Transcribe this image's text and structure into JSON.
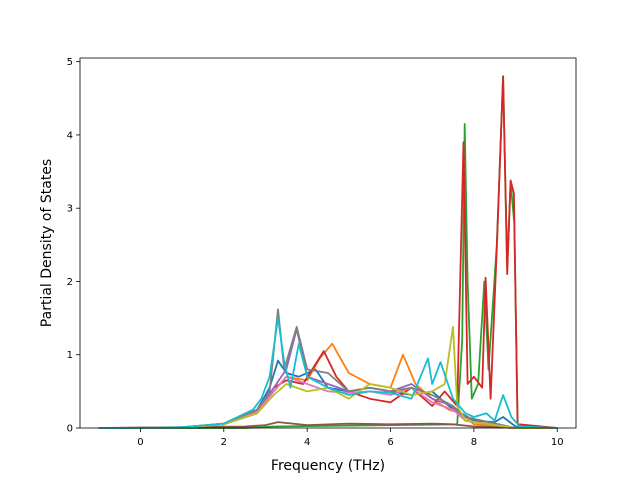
{
  "chart_data": {
    "type": "line",
    "title": "",
    "xlabel": "Frequency (THz)",
    "ylabel": "Partial Density of States",
    "xlim": [
      -1.45,
      10.45
    ],
    "ylim": [
      0,
      5.05
    ],
    "xticks": [
      0,
      2,
      4,
      6,
      8,
      10
    ],
    "xtick_labels": [
      "0",
      "2",
      "4",
      "6",
      "8",
      "10"
    ],
    "yticks": [
      0,
      1,
      2,
      3,
      4,
      5
    ],
    "ytick_labels": [
      "0",
      "1",
      "2",
      "3",
      "4",
      "5"
    ],
    "grid": false,
    "series": [
      {
        "color": "#1f77b4",
        "points": [
          [
            -1.0,
            0
          ],
          [
            0,
            0
          ],
          [
            1,
            0.01
          ],
          [
            2,
            0.05
          ],
          [
            2.8,
            0.25
          ],
          [
            3.1,
            0.55
          ],
          [
            3.3,
            0.92
          ],
          [
            3.5,
            0.75
          ],
          [
            3.8,
            0.7
          ],
          [
            4.2,
            0.8
          ],
          [
            4.5,
            0.55
          ],
          [
            5,
            0.5
          ],
          [
            5.5,
            0.55
          ],
          [
            6,
            0.5
          ],
          [
            6.5,
            0.45
          ],
          [
            7,
            0.5
          ],
          [
            7.4,
            0.3
          ],
          [
            7.7,
            0.2
          ],
          [
            8,
            0.1
          ],
          [
            8.5,
            0.08
          ],
          [
            8.7,
            0.15
          ],
          [
            9,
            0.02
          ],
          [
            10,
            0
          ]
        ]
      },
      {
        "color": "#ff7f0e",
        "points": [
          [
            -1.0,
            0
          ],
          [
            0,
            0
          ],
          [
            1,
            0.01
          ],
          [
            2,
            0.05
          ],
          [
            2.8,
            0.22
          ],
          [
            3.2,
            0.5
          ],
          [
            3.5,
            0.7
          ],
          [
            4,
            0.65
          ],
          [
            4.3,
            0.95
          ],
          [
            4.6,
            1.15
          ],
          [
            5,
            0.75
          ],
          [
            5.5,
            0.6
          ],
          [
            6,
            0.55
          ],
          [
            6.3,
            1.0
          ],
          [
            6.6,
            0.6
          ],
          [
            7,
            0.4
          ],
          [
            7.4,
            0.25
          ],
          [
            7.7,
            0.2
          ],
          [
            8,
            0.05
          ],
          [
            9,
            0
          ],
          [
            10,
            0
          ]
        ]
      },
      {
        "color": "#2ca02c",
        "points": [
          [
            -1.0,
            0
          ],
          [
            2.5,
            0
          ],
          [
            3.2,
            0.02
          ],
          [
            7.6,
            0.05
          ],
          [
            7.72,
            1.2
          ],
          [
            7.78,
            4.15
          ],
          [
            7.85,
            2.0
          ],
          [
            7.95,
            0.4
          ],
          [
            8.1,
            0.6
          ],
          [
            8.25,
            2.0
          ],
          [
            8.35,
            0.8
          ],
          [
            8.55,
            2.5
          ],
          [
            8.7,
            4.8
          ],
          [
            8.8,
            2.2
          ],
          [
            8.88,
            3.35
          ],
          [
            8.97,
            2.8
          ],
          [
            9.05,
            0.05
          ],
          [
            10,
            0
          ]
        ]
      },
      {
        "color": "#d62728",
        "points": [
          [
            -1.0,
            0
          ],
          [
            0,
            0
          ],
          [
            1,
            0.01
          ],
          [
            2,
            0.06
          ],
          [
            2.8,
            0.22
          ],
          [
            3.2,
            0.55
          ],
          [
            3.5,
            0.65
          ],
          [
            3.9,
            0.6
          ],
          [
            4.4,
            1.05
          ],
          [
            4.7,
            0.7
          ],
          [
            5,
            0.5
          ],
          [
            5.5,
            0.4
          ],
          [
            6,
            0.35
          ],
          [
            6.5,
            0.55
          ],
          [
            7,
            0.3
          ],
          [
            7.3,
            0.5
          ],
          [
            7.6,
            0.3
          ],
          [
            7.75,
            3.9
          ],
          [
            7.85,
            0.6
          ],
          [
            8,
            0.7
          ],
          [
            8.2,
            0.55
          ],
          [
            8.28,
            2.05
          ],
          [
            8.4,
            0.4
          ],
          [
            8.55,
            2.45
          ],
          [
            8.7,
            4.8
          ],
          [
            8.8,
            2.1
          ],
          [
            8.88,
            3.38
          ],
          [
            8.96,
            3.2
          ],
          [
            9.05,
            0.05
          ],
          [
            10,
            0
          ]
        ]
      },
      {
        "color": "#9467bd",
        "points": [
          [
            -1.0,
            0
          ],
          [
            0,
            0
          ],
          [
            1,
            0.01
          ],
          [
            2,
            0.05
          ],
          [
            2.8,
            0.2
          ],
          [
            3.2,
            0.55
          ],
          [
            3.5,
            0.8
          ],
          [
            3.75,
            1.35
          ],
          [
            4,
            0.7
          ],
          [
            4.5,
            0.6
          ],
          [
            5,
            0.5
          ],
          [
            5.5,
            0.55
          ],
          [
            6,
            0.5
          ],
          [
            6.5,
            0.6
          ],
          [
            7,
            0.4
          ],
          [
            7.5,
            0.3
          ],
          [
            7.8,
            0.1
          ],
          [
            9,
            0
          ],
          [
            10,
            0
          ]
        ]
      },
      {
        "color": "#8c564b",
        "points": [
          [
            -1.0,
            0
          ],
          [
            2.5,
            0.02
          ],
          [
            3,
            0.04
          ],
          [
            3.3,
            0.08
          ],
          [
            4,
            0.04
          ],
          [
            5,
            0.06
          ],
          [
            6,
            0.05
          ],
          [
            7,
            0.06
          ],
          [
            7.5,
            0.05
          ],
          [
            8,
            0.02
          ],
          [
            9,
            0
          ],
          [
            10,
            0
          ]
        ]
      },
      {
        "color": "#e377c2",
        "points": [
          [
            -1.0,
            0
          ],
          [
            0,
            0
          ],
          [
            1,
            0.01
          ],
          [
            2,
            0.05
          ],
          [
            2.8,
            0.22
          ],
          [
            3.2,
            0.5
          ],
          [
            3.5,
            0.7
          ],
          [
            4,
            0.6
          ],
          [
            4.5,
            0.5
          ],
          [
            5,
            0.48
          ],
          [
            5.5,
            0.5
          ],
          [
            6,
            0.45
          ],
          [
            6.5,
            0.55
          ],
          [
            7,
            0.35
          ],
          [
            7.5,
            0.25
          ],
          [
            7.8,
            0.1
          ],
          [
            9,
            0
          ],
          [
            10,
            0
          ]
        ]
      },
      {
        "color": "#7f7f7f",
        "points": [
          [
            -1.0,
            0
          ],
          [
            0,
            0
          ],
          [
            1,
            0.01
          ],
          [
            2,
            0.06
          ],
          [
            2.8,
            0.25
          ],
          [
            3.1,
            0.5
          ],
          [
            3.3,
            1.62
          ],
          [
            3.45,
            0.8
          ],
          [
            3.75,
            1.38
          ],
          [
            4,
            0.8
          ],
          [
            4.5,
            0.75
          ],
          [
            5,
            0.5
          ],
          [
            5.5,
            0.55
          ],
          [
            6,
            0.5
          ],
          [
            6.5,
            0.55
          ],
          [
            7,
            0.45
          ],
          [
            7.5,
            0.3
          ],
          [
            7.8,
            0.15
          ],
          [
            9,
            0
          ],
          [
            10,
            0
          ]
        ]
      },
      {
        "color": "#bcbd22",
        "points": [
          [
            -1.0,
            0
          ],
          [
            0,
            0
          ],
          [
            1,
            0.01
          ],
          [
            2,
            0.05
          ],
          [
            2.8,
            0.2
          ],
          [
            3.2,
            0.45
          ],
          [
            3.5,
            0.6
          ],
          [
            4,
            0.5
          ],
          [
            4.5,
            0.55
          ],
          [
            5,
            0.4
          ],
          [
            5.5,
            0.6
          ],
          [
            6,
            0.55
          ],
          [
            6.5,
            0.45
          ],
          [
            7,
            0.5
          ],
          [
            7.3,
            0.6
          ],
          [
            7.5,
            1.38
          ],
          [
            7.6,
            0.3
          ],
          [
            7.8,
            0.1
          ],
          [
            9,
            0
          ],
          [
            10,
            0
          ]
        ]
      },
      {
        "color": "#17becf",
        "points": [
          [
            -1.0,
            0
          ],
          [
            0,
            0
          ],
          [
            1,
            0.01
          ],
          [
            2,
            0.06
          ],
          [
            2.7,
            0.25
          ],
          [
            2.9,
            0.4
          ],
          [
            3.1,
            0.7
          ],
          [
            3.3,
            1.5
          ],
          [
            3.45,
            0.9
          ],
          [
            3.6,
            0.55
          ],
          [
            3.8,
            1.15
          ],
          [
            4,
            0.7
          ],
          [
            4.5,
            0.55
          ],
          [
            5,
            0.45
          ],
          [
            5.5,
            0.5
          ],
          [
            6,
            0.48
          ],
          [
            6.5,
            0.4
          ],
          [
            6.9,
            0.95
          ],
          [
            7,
            0.6
          ],
          [
            7.2,
            0.9
          ],
          [
            7.5,
            0.4
          ],
          [
            7.8,
            0.2
          ],
          [
            8,
            0.15
          ],
          [
            8.3,
            0.2
          ],
          [
            8.5,
            0.1
          ],
          [
            8.7,
            0.45
          ],
          [
            8.9,
            0.15
          ],
          [
            9.1,
            0.02
          ],
          [
            10,
            0
          ]
        ]
      }
    ]
  }
}
